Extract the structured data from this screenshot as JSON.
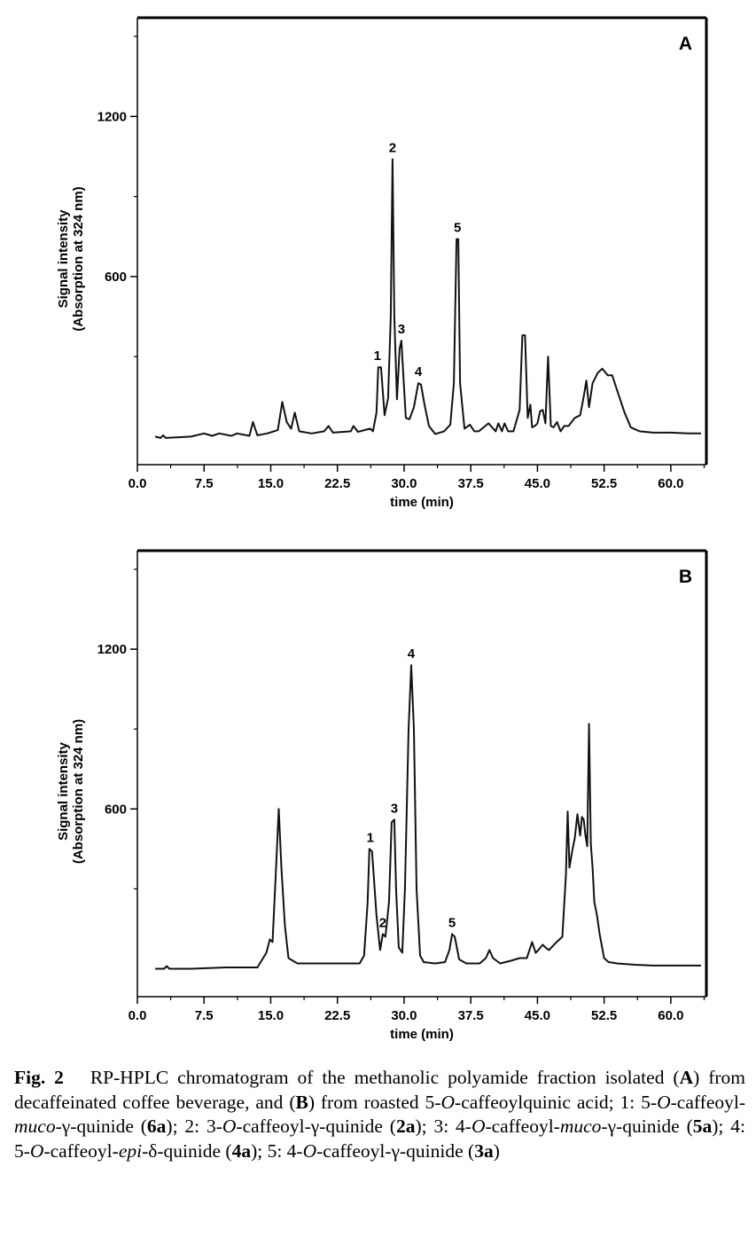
{
  "charts": [
    {
      "panel": "A",
      "ylabel_lines": [
        "Signal intensity",
        "(Absorption at 324 nm)"
      ],
      "xlabel": "time (min)"
    },
    {
      "panel": "B",
      "ylabel_lines": [
        "Signal intensity",
        "(Absorption at 324 nm)"
      ],
      "xlabel": "time (min)"
    }
  ],
  "chart_data": [
    {
      "type": "line",
      "panel": "A",
      "xlabel": "time (min)",
      "ylabel": "Signal intensity (Absorption at 324 nm)",
      "xlim": [
        0,
        64
      ],
      "ylim": [
        -105,
        1570
      ],
      "xticks": [
        "0.0",
        "7.5",
        "15.0",
        "22.5",
        "30.0",
        "37.5",
        "45.0",
        "52.5",
        "60.0"
      ],
      "xtick_values": [
        0,
        7.5,
        15,
        22.5,
        30,
        37.5,
        45,
        52.5,
        60
      ],
      "yticks": [
        "600",
        "1200"
      ],
      "ytick_values": [
        600,
        1200
      ],
      "series": [
        {
          "x": [
            2.0,
            2.6,
            2.9,
            3.2,
            6.0,
            7.5,
            7.9,
            8.4,
            9.2,
            10.6,
            11.2,
            12.6,
            13.0,
            13.5,
            14.6,
            15.8,
            16.3,
            16.8,
            17.3,
            17.7,
            18.2,
            19.6,
            21.0,
            21.5,
            22.0,
            24.0,
            24.3,
            24.8,
            26.2,
            26.5,
            26.9,
            27.1,
            27.4,
            27.8,
            28.2,
            28.5,
            28.7,
            28.9,
            29.2,
            29.5,
            29.7,
            29.9,
            30.2,
            30.6,
            31.1,
            31.6,
            31.9,
            32.3,
            32.8,
            33.5,
            34.5,
            35.2,
            35.6,
            35.9,
            36.1,
            36.3,
            36.8,
            37.4,
            37.9,
            38.4,
            39.5,
            40.3,
            40.6,
            41.0,
            41.3,
            41.7,
            42.3,
            43.0,
            43.3,
            43.6,
            43.9,
            44.2,
            44.4,
            44.7,
            45.0,
            45.3,
            45.6,
            45.9,
            46.2,
            46.5,
            46.8,
            47.2,
            47.6,
            48.0,
            48.5,
            49.2,
            49.8,
            50.2,
            50.5,
            50.8,
            51.2,
            51.8,
            52.3,
            52.9,
            53.4,
            54.0,
            54.8,
            55.5,
            56.5,
            58.0,
            60.0,
            62.0,
            63.4
          ],
          "y": [
            0,
            -5,
            5,
            -5,
            0,
            12,
            8,
            3,
            12,
            3,
            12,
            3,
            55,
            5,
            12,
            25,
            130,
            55,
            30,
            90,
            20,
            12,
            20,
            40,
            15,
            20,
            40,
            18,
            30,
            20,
            90,
            260,
            260,
            80,
            145,
            450,
            1040,
            450,
            140,
            330,
            360,
            240,
            70,
            65,
            110,
            200,
            195,
            120,
            40,
            10,
            20,
            45,
            200,
            740,
            740,
            200,
            30,
            45,
            20,
            20,
            50,
            20,
            50,
            20,
            50,
            20,
            20,
            100,
            380,
            380,
            70,
            120,
            35,
            40,
            50,
            95,
            100,
            50,
            300,
            40,
            35,
            55,
            20,
            40,
            40,
            70,
            80,
            150,
            210,
            110,
            200,
            240,
            255,
            230,
            230,
            170,
            90,
            35,
            20,
            15,
            15,
            12,
            12
          ]
        }
      ],
      "annotations": [
        {
          "text": "1",
          "x": 27.0,
          "y": 260
        },
        {
          "text": "2",
          "x": 28.7,
          "y": 1040
        },
        {
          "text": "3",
          "x": 29.7,
          "y": 360
        },
        {
          "text": "4",
          "x": 31.6,
          "y": 200
        },
        {
          "text": "5",
          "x": 36.0,
          "y": 740
        }
      ]
    },
    {
      "type": "line",
      "panel": "B",
      "xlabel": "time (min)",
      "ylabel": "Signal intensity (Absorption at 324 nm)",
      "xlim": [
        0,
        64
      ],
      "ylim": [
        -105,
        1570
      ],
      "xticks": [
        "0.0",
        "7.5",
        "15.0",
        "22.5",
        "30.0",
        "37.5",
        "45.0",
        "52.5",
        "60.0"
      ],
      "xtick_values": [
        0,
        7.5,
        15,
        22.5,
        30,
        37.5,
        45,
        52.5,
        60
      ],
      "yticks": [
        "600",
        "1200"
      ],
      "ytick_values": [
        600,
        1200
      ],
      "series": [
        {
          "x": [
            2.0,
            3.0,
            3.3,
            3.6,
            6.0,
            10.0,
            13.5,
            14.5,
            14.9,
            15.2,
            15.6,
            15.9,
            16.2,
            16.6,
            17.0,
            18.0,
            20.0,
            22.5,
            25.0,
            25.5,
            25.9,
            26.1,
            26.4,
            26.9,
            27.3,
            27.6,
            27.9,
            28.3,
            28.6,
            28.9,
            29.1,
            29.4,
            29.8,
            30.1,
            30.5,
            30.8,
            31.1,
            31.4,
            31.8,
            32.2,
            33.5,
            34.6,
            35.1,
            35.4,
            35.7,
            36.2,
            37.0,
            38.5,
            39.2,
            39.6,
            40.0,
            40.8,
            42.0,
            43.0,
            43.8,
            44.4,
            44.8,
            45.1,
            45.6,
            45.9,
            46.3,
            47.0,
            47.8,
            48.2,
            48.4,
            48.6,
            48.9,
            49.2,
            49.5,
            49.8,
            50.0,
            50.2,
            50.4,
            50.6,
            50.8,
            51.0,
            51.2,
            51.4,
            51.7,
            52.0,
            52.5,
            53.0,
            54.0,
            56.0,
            58.0,
            61.0,
            63.4
          ],
          "y": [
            0,
            0,
            10,
            0,
            0,
            5,
            5,
            60,
            110,
            100,
            380,
            600,
            380,
            160,
            40,
            20,
            20,
            20,
            20,
            50,
            250,
            450,
            440,
            200,
            70,
            130,
            120,
            250,
            550,
            560,
            300,
            80,
            60,
            300,
            900,
            1140,
            900,
            300,
            50,
            25,
            20,
            25,
            70,
            130,
            120,
            35,
            20,
            20,
            40,
            70,
            40,
            20,
            30,
            40,
            40,
            100,
            60,
            70,
            90,
            80,
            70,
            95,
            120,
            350,
            590,
            380,
            440,
            490,
            580,
            500,
            570,
            560,
            500,
            460,
            920,
            470,
            380,
            250,
            200,
            130,
            40,
            25,
            20,
            15,
            12,
            12,
            12
          ]
        }
      ],
      "annotations": [
        {
          "text": "1",
          "x": 26.2,
          "y": 450
        },
        {
          "text": "2",
          "x": 27.6,
          "y": 130
        },
        {
          "text": "3",
          "x": 28.9,
          "y": 560
        },
        {
          "text": "4",
          "x": 30.8,
          "y": 1140
        },
        {
          "text": "5",
          "x": 35.4,
          "y": 130
        }
      ]
    }
  ],
  "caption": {
    "fig_label": "Fig. 2",
    "segments": [
      {
        "t": "RP-HPLC chromatogram of the methanolic polyamide fraction isolated (",
        "s": "n"
      },
      {
        "t": "A",
        "s": "b"
      },
      {
        "t": ") from decaffeinated coffee beverage, and (",
        "s": "n"
      },
      {
        "t": "B",
        "s": "b"
      },
      {
        "t": ") from roasted 5-",
        "s": "n"
      },
      {
        "t": "O",
        "s": "i"
      },
      {
        "t": "-caffeoylquinic acid; 1: 5-",
        "s": "n"
      },
      {
        "t": "O",
        "s": "i"
      },
      {
        "t": "-caffeoyl-",
        "s": "n"
      },
      {
        "t": "muco",
        "s": "i"
      },
      {
        "t": "-γ-quinide (",
        "s": "n"
      },
      {
        "t": "6a",
        "s": "b"
      },
      {
        "t": "); 2: 3-",
        "s": "n"
      },
      {
        "t": "O",
        "s": "i"
      },
      {
        "t": "-caffeoyl-γ-quinide (",
        "s": "n"
      },
      {
        "t": "2a",
        "s": "b"
      },
      {
        "t": "); 3: 4-",
        "s": "n"
      },
      {
        "t": "O",
        "s": "i"
      },
      {
        "t": "-caffeoyl-",
        "s": "n"
      },
      {
        "t": "muco",
        "s": "i"
      },
      {
        "t": "-γ-quinide (",
        "s": "n"
      },
      {
        "t": "5a",
        "s": "b"
      },
      {
        "t": "); 4: 5-",
        "s": "n"
      },
      {
        "t": "O",
        "s": "i"
      },
      {
        "t": "-caffeoyl-",
        "s": "n"
      },
      {
        "t": "epi",
        "s": "i"
      },
      {
        "t": "-δ-quinide (",
        "s": "n"
      },
      {
        "t": "4a",
        "s": "b"
      },
      {
        "t": "); 5: 4-",
        "s": "n"
      },
      {
        "t": "O",
        "s": "i"
      },
      {
        "t": "-caffeoyl-γ-quinide (",
        "s": "n"
      },
      {
        "t": "3a",
        "s": "b"
      },
      {
        "t": ")",
        "s": "n"
      }
    ]
  }
}
